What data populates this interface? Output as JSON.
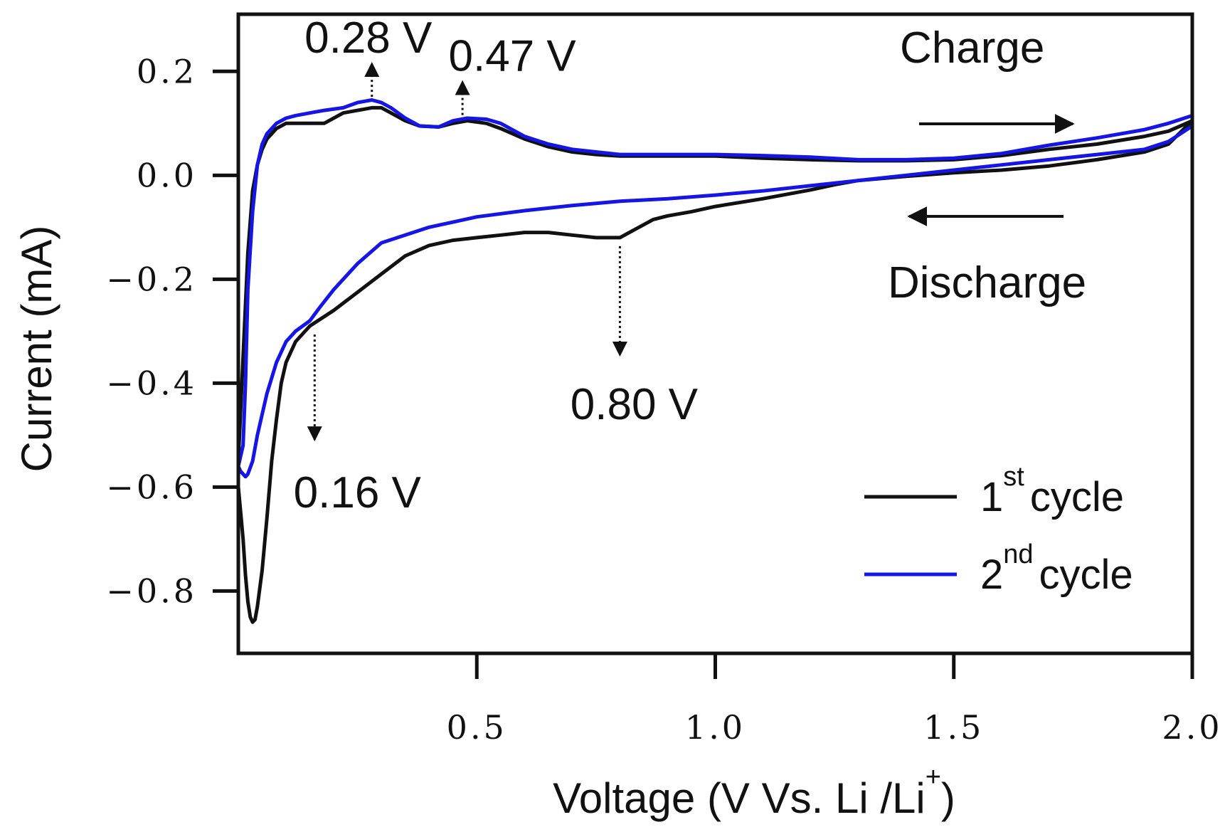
{
  "chart_data": {
    "type": "line",
    "title": "",
    "xlabel": "Voltage (V Vs. Li /Li",
    "xlabel_sup": "+",
    "xlabel_close": ")",
    "ylabel": "Current (mA)",
    "xlim": [
      0.0,
      2.0
    ],
    "ylim": [
      -0.92,
      0.31
    ],
    "xticks": [
      0.5,
      1.0,
      1.5,
      2.0
    ],
    "xtick_labels": [
      "0.5",
      "1.0",
      "1.5",
      "2.0"
    ],
    "yticks": [
      0.2,
      0.0,
      -0.2,
      -0.4,
      -0.6,
      -0.8
    ],
    "ytick_labels": [
      "0.2",
      "0.0",
      "−0.2",
      "−0.4",
      "−0.6",
      "−0.8"
    ],
    "grid": false,
    "legend_position": "bottom-right",
    "series": [
      {
        "name": "1st cycle",
        "legend_main": "1",
        "legend_sup": "st",
        "legend_rest": "cycle",
        "color": "#111111",
        "x": [
          0.0,
          0.01,
          0.02,
          0.03,
          0.04,
          0.05,
          0.06,
          0.07,
          0.08,
          0.1,
          0.12,
          0.15,
          0.18,
          0.22,
          0.25,
          0.28,
          0.3,
          0.32,
          0.35,
          0.38,
          0.42,
          0.45,
          0.48,
          0.52,
          0.55,
          0.6,
          0.65,
          0.7,
          0.75,
          0.8,
          0.9,
          1.0,
          1.1,
          1.2,
          1.3,
          1.4,
          1.5,
          1.6,
          1.7,
          1.8,
          1.9,
          1.95,
          2.0,
          2.0,
          1.95,
          1.9,
          1.8,
          1.7,
          1.6,
          1.5,
          1.4,
          1.3,
          1.25,
          1.2,
          1.1,
          1.0,
          0.95,
          0.9,
          0.87,
          0.85,
          0.82,
          0.8,
          0.78,
          0.75,
          0.7,
          0.65,
          0.6,
          0.55,
          0.5,
          0.45,
          0.4,
          0.35,
          0.3,
          0.25,
          0.2,
          0.15,
          0.12,
          0.1,
          0.09,
          0.08,
          0.07,
          0.06,
          0.05,
          0.04,
          0.035,
          0.03,
          0.025,
          0.02,
          0.015,
          0.01,
          0.005,
          0.0
        ],
        "y": [
          -0.55,
          -0.35,
          -0.15,
          -0.03,
          0.02,
          0.05,
          0.07,
          0.08,
          0.09,
          0.1,
          0.1,
          0.1,
          0.1,
          0.12,
          0.125,
          0.13,
          0.13,
          0.12,
          0.105,
          0.095,
          0.093,
          0.1,
          0.105,
          0.1,
          0.09,
          0.07,
          0.055,
          0.045,
          0.04,
          0.037,
          0.037,
          0.037,
          0.033,
          0.03,
          0.028,
          0.028,
          0.03,
          0.038,
          0.05,
          0.06,
          0.075,
          0.085,
          0.105,
          0.105,
          0.06,
          0.045,
          0.03,
          0.018,
          0.01,
          0.005,
          -0.002,
          -0.01,
          -0.018,
          -0.028,
          -0.045,
          -0.06,
          -0.07,
          -0.078,
          -0.085,
          -0.095,
          -0.11,
          -0.12,
          -0.12,
          -0.12,
          -0.115,
          -0.11,
          -0.11,
          -0.115,
          -0.12,
          -0.125,
          -0.135,
          -0.155,
          -0.19,
          -0.225,
          -0.26,
          -0.29,
          -0.32,
          -0.36,
          -0.4,
          -0.47,
          -0.55,
          -0.66,
          -0.76,
          -0.83,
          -0.855,
          -0.86,
          -0.85,
          -0.82,
          -0.77,
          -0.7,
          -0.65,
          -0.6
        ]
      },
      {
        "name": "2nd cycle",
        "legend_main": "2",
        "legend_sup": "nd",
        "legend_rest": "cycle",
        "color": "#1515e6",
        "x": [
          0.0,
          0.01,
          0.015,
          0.02,
          0.03,
          0.04,
          0.05,
          0.06,
          0.08,
          0.1,
          0.12,
          0.15,
          0.18,
          0.22,
          0.25,
          0.28,
          0.3,
          0.32,
          0.35,
          0.38,
          0.42,
          0.45,
          0.48,
          0.52,
          0.55,
          0.6,
          0.65,
          0.7,
          0.75,
          0.8,
          0.9,
          1.0,
          1.1,
          1.2,
          1.3,
          1.4,
          1.5,
          1.6,
          1.7,
          1.8,
          1.9,
          1.95,
          2.0,
          2.0,
          1.95,
          1.9,
          1.8,
          1.7,
          1.6,
          1.5,
          1.4,
          1.3,
          1.2,
          1.1,
          1.0,
          0.9,
          0.8,
          0.7,
          0.6,
          0.5,
          0.4,
          0.3,
          0.25,
          0.2,
          0.17,
          0.15,
          0.12,
          0.1,
          0.08,
          0.06,
          0.04,
          0.03,
          0.02,
          0.015,
          0.01,
          0.005,
          0.0
        ],
        "y": [
          -0.56,
          -0.52,
          -0.4,
          -0.22,
          -0.07,
          0.02,
          0.06,
          0.08,
          0.1,
          0.11,
          0.115,
          0.12,
          0.125,
          0.13,
          0.14,
          0.145,
          0.14,
          0.13,
          0.11,
          0.095,
          0.093,
          0.105,
          0.11,
          0.108,
          0.1,
          0.075,
          0.06,
          0.05,
          0.045,
          0.04,
          0.04,
          0.04,
          0.038,
          0.035,
          0.03,
          0.03,
          0.033,
          0.042,
          0.058,
          0.072,
          0.088,
          0.1,
          0.115,
          0.095,
          0.065,
          0.05,
          0.04,
          0.03,
          0.02,
          0.01,
          0.0,
          -0.01,
          -0.02,
          -0.03,
          -0.038,
          -0.045,
          -0.05,
          -0.058,
          -0.068,
          -0.08,
          -0.1,
          -0.13,
          -0.17,
          -0.22,
          -0.255,
          -0.28,
          -0.3,
          -0.32,
          -0.36,
          -0.42,
          -0.5,
          -0.55,
          -0.575,
          -0.58,
          -0.575,
          -0.57,
          -0.56
        ]
      }
    ],
    "annotations": [
      {
        "text": "0.28 V",
        "x": 0.28,
        "y": 0.14,
        "direction": "up"
      },
      {
        "text": "0.47 V",
        "x": 0.47,
        "y": 0.105,
        "direction": "up"
      },
      {
        "text": "0.80 V",
        "x": 0.8,
        "y": -0.12,
        "direction": "down"
      },
      {
        "text": "0.16 V",
        "x": 0.16,
        "y": -0.29,
        "direction": "down"
      }
    ],
    "direction_labels": {
      "charge": "Charge",
      "discharge": "Discharge"
    }
  }
}
